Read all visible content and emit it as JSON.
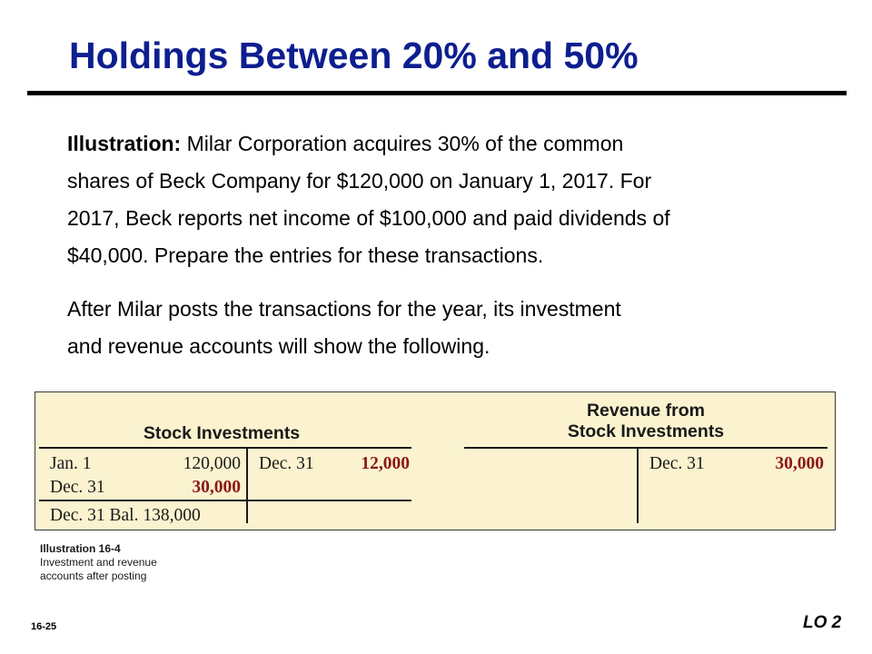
{
  "title": "Holdings Between 20% and 50%",
  "paragraph1": {
    "lead": "Illustration:",
    "lines": [
      " Milar Corporation acquires 30% of the common",
      "shares of Beck Company for $120,000 on January 1, 2017.  For",
      "2017, Beck reports net income of $100,000 and paid dividends of",
      "$40,000.  Prepare the entries for these transactions."
    ]
  },
  "paragraph2": {
    "lines": [
      "After Milar posts the transactions for the year, its investment",
      "and revenue accounts will show the following."
    ]
  },
  "accounts": {
    "stock_investments": {
      "header": "Stock Investments",
      "debits": [
        {
          "label": "Jan. 1",
          "amount": "120,000"
        },
        {
          "label": "Dec. 31",
          "amount": "30,000"
        }
      ],
      "credits": [
        {
          "label": "Dec. 31",
          "amount": "12,000"
        }
      ],
      "balance": {
        "label": "Dec. 31 Bal.",
        "amount": "138,000"
      }
    },
    "revenue": {
      "header_line1": "Revenue from",
      "header_line2": "Stock Investments",
      "credits": [
        {
          "label": "Dec. 31",
          "amount": "30,000"
        }
      ]
    }
  },
  "caption": {
    "title": "Illustration 16-4",
    "lines": [
      "Investment and revenue",
      "accounts after posting"
    ]
  },
  "slide_number": "16-25",
  "lo_label": "LO 2",
  "colors": {
    "title": "#0d1e8f",
    "panel": "#fbf3cf",
    "emphasis": "#8a1818"
  }
}
